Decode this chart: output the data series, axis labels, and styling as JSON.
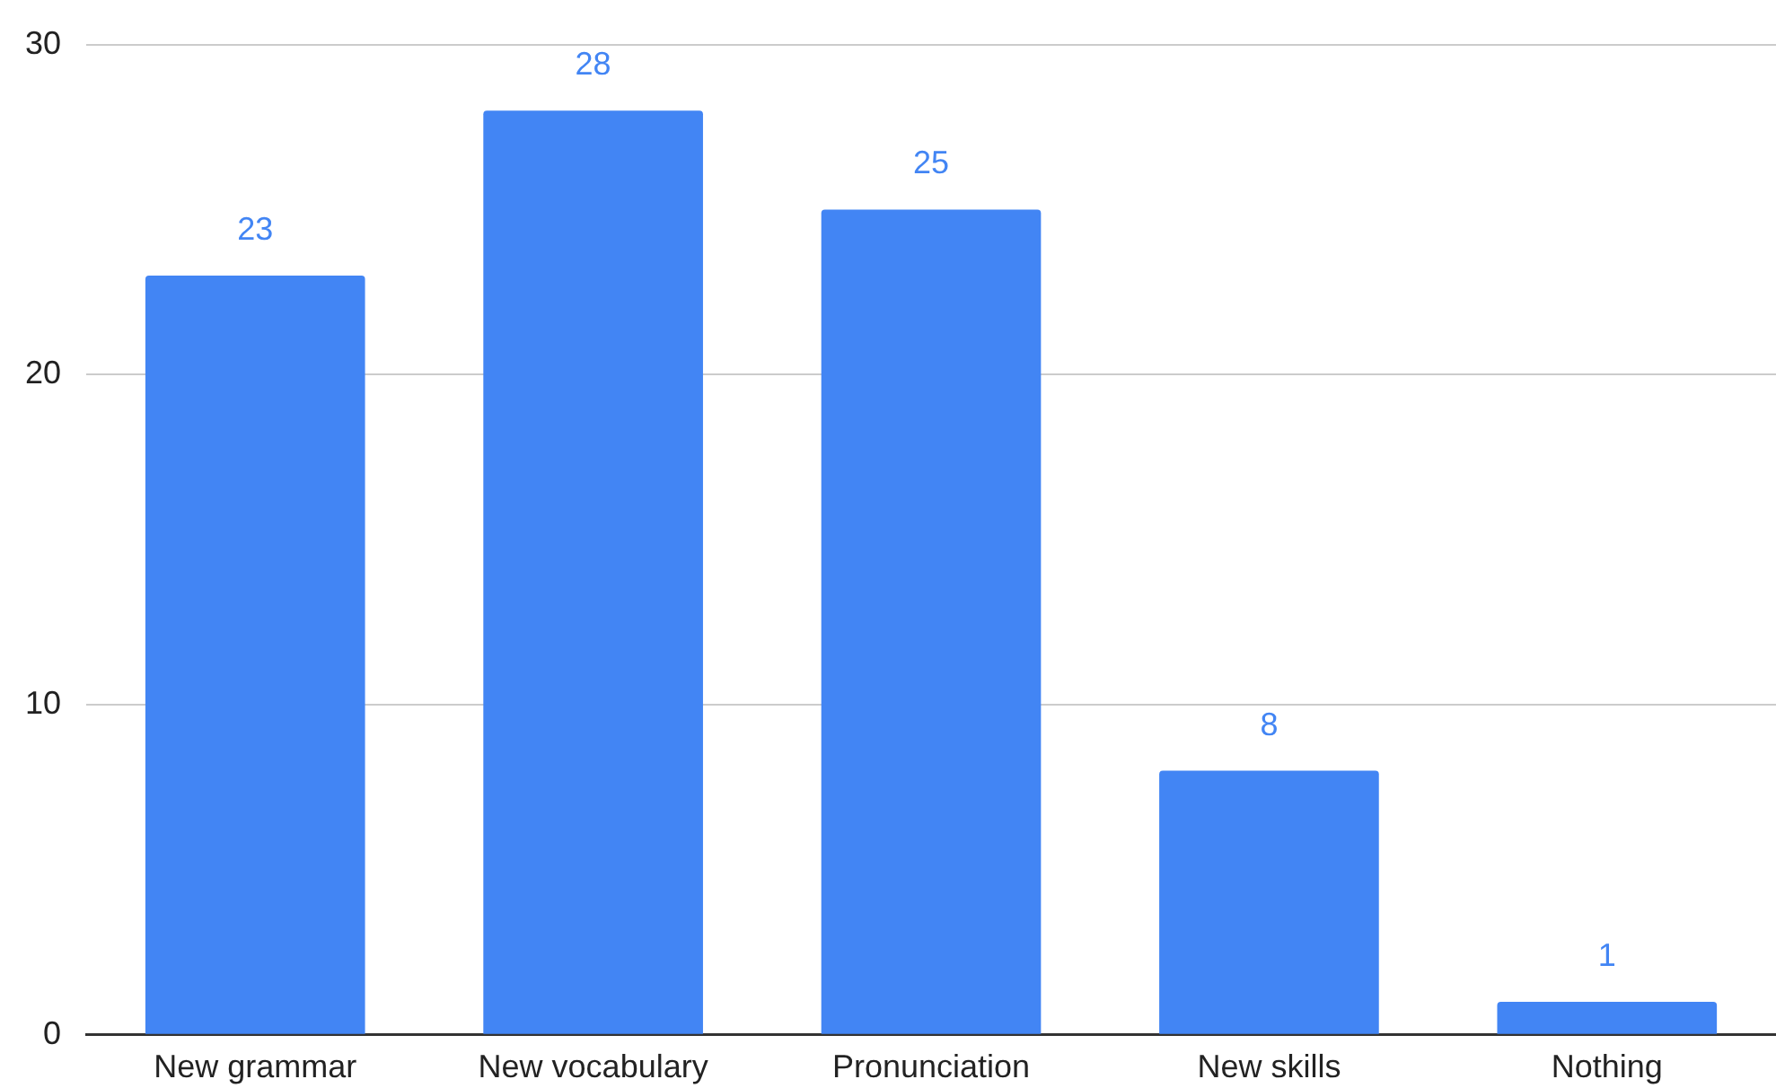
{
  "chart_data": {
    "type": "bar",
    "categories": [
      "New grammar",
      "New vocabulary",
      "Pronunciation",
      "New skills",
      "Nothing"
    ],
    "values": [
      23,
      28,
      25,
      8,
      1
    ],
    "color": "#4285f4",
    "ylim": [
      0,
      30
    ],
    "yticks": [
      0,
      10,
      20,
      30
    ],
    "grid": "y",
    "data_labels": true,
    "legend": false
  }
}
